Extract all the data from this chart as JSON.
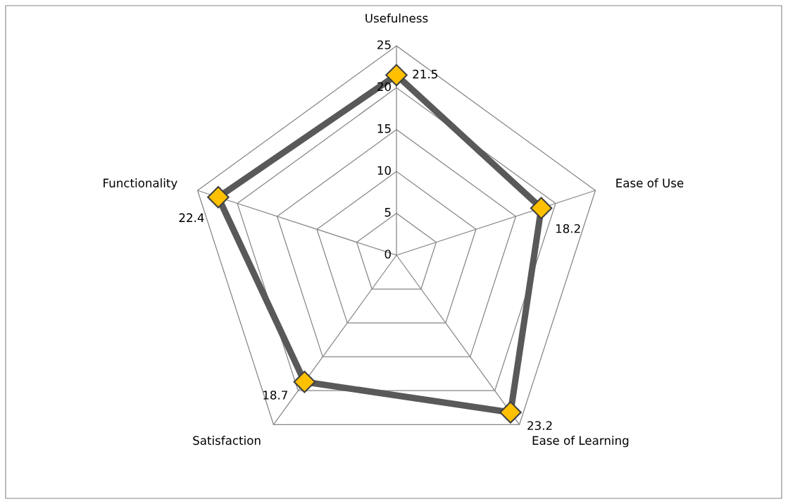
{
  "chart_data": {
    "type": "radar",
    "categories": [
      "Usefulness",
      "Ease of Use",
      "Ease of Learning",
      "Satisfaction",
      "Functionality"
    ],
    "series": [
      {
        "color": "#595959",
        "values": [
          21.5,
          18.2,
          23.2,
          18.7,
          22.4
        ],
        "value_labels": [
          "21.5",
          "18.2",
          "23.2",
          "18.7",
          "22.4"
        ]
      }
    ],
    "ylim": [
      0,
      25
    ],
    "yticks": [
      0,
      5,
      10,
      15,
      20,
      25
    ],
    "grid": true,
    "marker": "diamond",
    "line_style": "solid"
  }
}
